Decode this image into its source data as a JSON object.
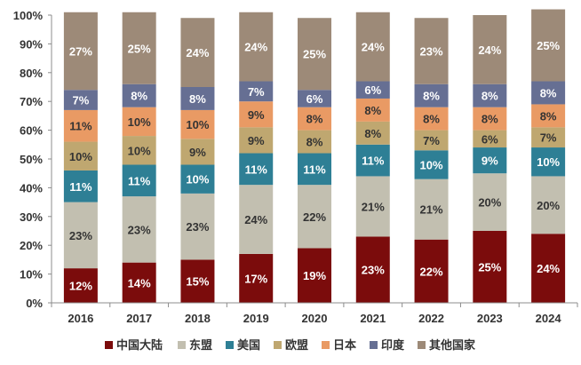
{
  "chart_data": {
    "type": "bar",
    "stacked": true,
    "percent_stacked": true,
    "categories": [
      "2016",
      "2017",
      "2018",
      "2019",
      "2020",
      "2021",
      "2022",
      "2023",
      "2024"
    ],
    "series": [
      {
        "name": "中国大陆",
        "color": "#7b0c0c",
        "label_color": "#ffffff",
        "values": [
          12,
          14,
          15,
          17,
          19,
          23,
          22,
          25,
          24
        ]
      },
      {
        "name": "东盟",
        "color": "#c2bfb0",
        "label_color": "#333333",
        "values": [
          23,
          23,
          23,
          24,
          22,
          21,
          21,
          20,
          20
        ]
      },
      {
        "name": "美国",
        "color": "#2e7f95",
        "label_color": "#ffffff",
        "values": [
          11,
          11,
          10,
          11,
          11,
          11,
          10,
          9,
          10
        ]
      },
      {
        "name": "欧盟",
        "color": "#bfa770",
        "label_color": "#333333",
        "values": [
          10,
          10,
          9,
          9,
          8,
          8,
          7,
          6,
          7
        ]
      },
      {
        "name": "日本",
        "color": "#e99a64",
        "label_color": "#333333",
        "values": [
          11,
          10,
          10,
          9,
          8,
          8,
          8,
          8,
          8
        ]
      },
      {
        "name": "印度",
        "color": "#666f93",
        "label_color": "#ffffff",
        "values": [
          7,
          8,
          8,
          7,
          6,
          6,
          8,
          8,
          8
        ]
      },
      {
        "name": "其他国家",
        "color": "#9d8a78",
        "label_color": "#ffffff",
        "values": [
          27,
          25,
          24,
          24,
          25,
          24,
          23,
          24,
          25
        ]
      }
    ],
    "ylim": [
      0,
      100
    ],
    "yticks": [
      0,
      10,
      20,
      30,
      40,
      50,
      60,
      70,
      80,
      90,
      100
    ],
    "ytick_labels": [
      "0%",
      "10%",
      "20%",
      "30%",
      "40%",
      "50%",
      "60%",
      "70%",
      "80%",
      "90%",
      "100%"
    ],
    "value_suffix": "%",
    "title": "",
    "xlabel": "",
    "ylabel": "",
    "grid": false,
    "legend_position": "bottom"
  }
}
